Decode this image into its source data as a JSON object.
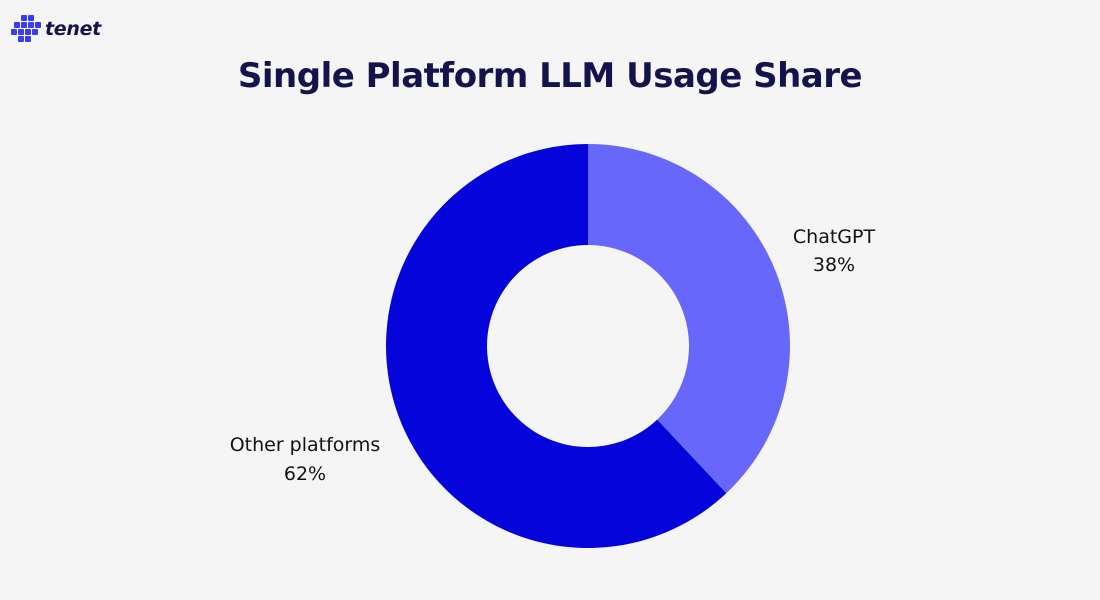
{
  "brand": {
    "name": "tenet",
    "logo_icon": "tenet-logo-icon",
    "color": "#15134b"
  },
  "chart_data": {
    "type": "pie",
    "donut": true,
    "title": "Single Platform LLM Usage Share",
    "slices": [
      {
        "label": "ChatGPT",
        "value": 38,
        "value_label": "38%",
        "color": "#6767fc"
      },
      {
        "label": "Other platforms",
        "value": 62,
        "value_label": "62%",
        "color": "#0505db"
      }
    ],
    "start": "top",
    "direction": "clockwise",
    "labels_position": "outside"
  }
}
